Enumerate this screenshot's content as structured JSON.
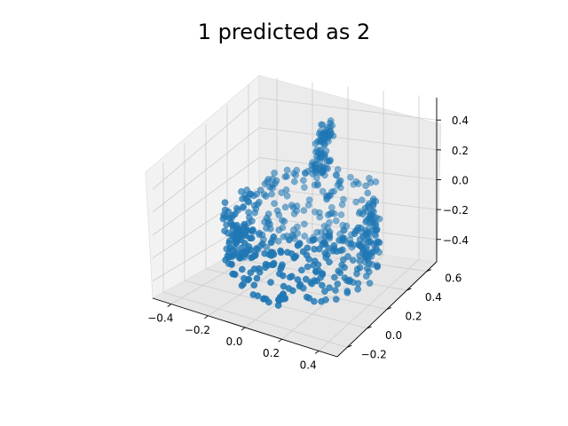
{
  "chart_data": {
    "type": "scatter",
    "projection": "3d",
    "title": "1 predicted as 2",
    "xlabel": "",
    "ylabel": "",
    "zlabel": "",
    "grid": true,
    "xlim": [
      -0.5,
      0.5
    ],
    "ylim": [
      -0.3,
      0.7
    ],
    "zlim": [
      -0.55,
      0.55
    ],
    "x_ticks": [
      "−0.4",
      "−0.2",
      "0.0",
      "0.2",
      "0.4"
    ],
    "y_ticks": [
      "−0.2",
      "0.0",
      "0.2",
      "0.4",
      "0.6"
    ],
    "z_ticks": [
      "−0.4",
      "−0.2",
      "0.0",
      "0.2",
      "0.4"
    ],
    "x_tick_values": [
      -0.4,
      -0.2,
      0.0,
      0.2,
      0.4
    ],
    "y_tick_values": [
      -0.2,
      0.0,
      0.2,
      0.4,
      0.6
    ],
    "z_tick_values": [
      -0.4,
      -0.2,
      0.0,
      0.2,
      0.4
    ],
    "point_color": "#1f77b4",
    "point_count": 600,
    "shape": "mug-like point cloud: ring of points (radius ~0.35) with a vertical handle/spout rising to z ~0.45"
  }
}
